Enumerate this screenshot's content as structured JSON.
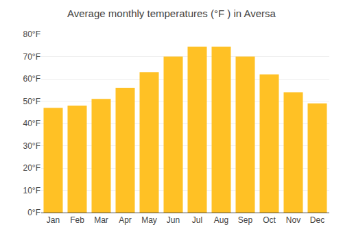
{
  "chart_data": {
    "type": "bar",
    "title": "Average monthly temperatures (°F ) in Aversa",
    "categories": [
      "Jan",
      "Feb",
      "Mar",
      "Apr",
      "May",
      "Jun",
      "Jul",
      "Aug",
      "Sep",
      "Oct",
      "Nov",
      "Dec"
    ],
    "values": [
      47,
      48,
      51,
      56,
      63,
      70,
      74.5,
      74.5,
      70,
      62,
      54,
      49
    ],
    "color": "#FFC125",
    "ylim": [
      0,
      80
    ],
    "yticks": [
      {
        "value": 0,
        "label": "0°F"
      },
      {
        "value": 10,
        "label": "10°F"
      },
      {
        "value": 20,
        "label": "20°F"
      },
      {
        "value": 30,
        "label": "30°F"
      },
      {
        "value": 40,
        "label": "40°F"
      },
      {
        "value": 50,
        "label": "50°F"
      },
      {
        "value": 60,
        "label": "60°F"
      },
      {
        "value": 70,
        "label": "70°F"
      },
      {
        "value": 80,
        "label": "80°F"
      }
    ],
    "grid": true
  }
}
